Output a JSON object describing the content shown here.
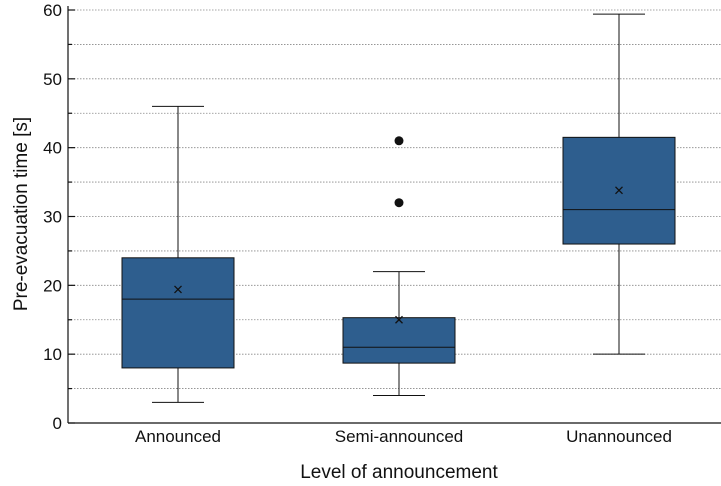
{
  "chart_data": {
    "type": "box",
    "title": "",
    "xlabel": "Level of announcement",
    "ylabel": "Pre-evacuation time [s]",
    "ylim": [
      0,
      60
    ],
    "yticks": [
      0,
      10,
      20,
      30,
      40,
      50,
      60
    ],
    "y_minor_step": 5,
    "grid": true,
    "box_color": "#2e5e8e",
    "groups": [
      {
        "label": "Announced",
        "min": 3,
        "q1": 8,
        "median": 18,
        "q3": 24,
        "max": 46,
        "mean": 19.4,
        "outliers": []
      },
      {
        "label": "Semi-announced",
        "min": 4,
        "q1": 8.7,
        "median": 11,
        "q3": 15.3,
        "max": 22,
        "mean": 15,
        "outliers": [
          32,
          41
        ]
      },
      {
        "label": "Unannounced",
        "min": 10,
        "q1": 26,
        "median": 31,
        "q3": 41.5,
        "max": 59.4,
        "mean": 33.8,
        "outliers": []
      }
    ]
  }
}
